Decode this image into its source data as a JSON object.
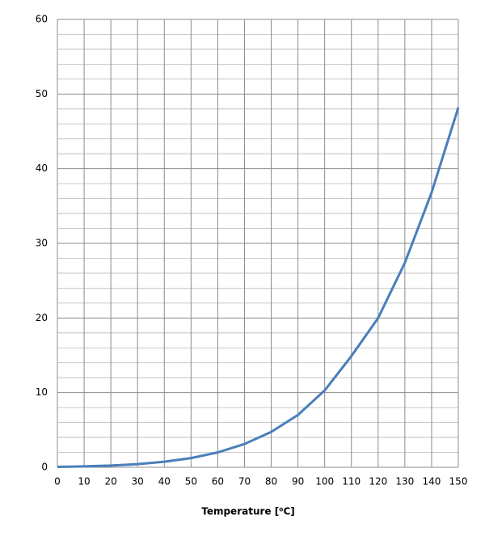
{
  "chart_data": {
    "type": "line",
    "x_label": "Temperature [⁰C]",
    "x": [
      0,
      10,
      20,
      30,
      40,
      50,
      60,
      70,
      80,
      90,
      100,
      110,
      120,
      130,
      140,
      150
    ],
    "series": [
      {
        "color": "#4a7ebb",
        "values": [
          0.06,
          0.12,
          0.23,
          0.42,
          0.74,
          1.23,
          1.99,
          3.12,
          4.74,
          7.01,
          10.3,
          14.9,
          20.0,
          27.4,
          36.8,
          48.2
        ]
      }
    ],
    "xlim": [
      0,
      150
    ],
    "xticks": [
      0,
      10,
      20,
      30,
      40,
      50,
      60,
      70,
      80,
      90,
      100,
      110,
      120,
      130,
      140,
      150
    ],
    "ylim": [
      0,
      60
    ],
    "yticks": [
      0,
      10,
      20,
      30,
      40,
      50,
      60
    ],
    "grid": true
  }
}
